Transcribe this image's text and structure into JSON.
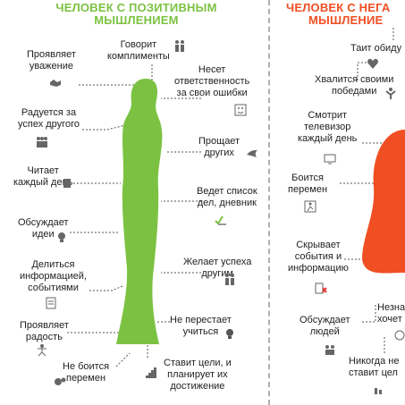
{
  "positive": {
    "title_line1": "ЧЕЛОВЕК С ПОЗИТИВНЫМ",
    "title_line2": "МЫШЛЕНИЕМ",
    "figure_color": "#7cc242",
    "items": [
      {
        "line1": "Проявляет",
        "line2": "уважение",
        "icon": "handshake-icon"
      },
      {
        "line1": "Говорит",
        "line2": "комплименты",
        "icon": "couple-icon"
      },
      {
        "line1": "Несет",
        "line2": "ответственность",
        "line3": "за свои ошибки",
        "icon": "smiley-icon"
      },
      {
        "line1": "Радуется за",
        "line2": "успех другого",
        "icon": "people-group-icon"
      },
      {
        "line1": "Прощает",
        "line2": "других",
        "icon": "dove-icon"
      },
      {
        "line1": "Читает",
        "line2": "каждый день",
        "icon": "book-icon"
      },
      {
        "line1": "Ведет список",
        "line2": "дел, дневник",
        "icon": "checklist-icon"
      },
      {
        "line1": "Обсуждает",
        "line2": "идеи",
        "icon": "lightbulb-icon"
      },
      {
        "line1": "Желает успеха",
        "line2": "другим",
        "icon": "two-people-icon"
      },
      {
        "line1": "Делиться",
        "line2": "информацией,",
        "line3": "событиями",
        "icon": "document-icon"
      },
      {
        "line1": "Не перестает",
        "line2": "учиться",
        "icon": "bulb-icon"
      },
      {
        "line1": "Проявляет",
        "line2": "радость",
        "icon": "dancer-icon"
      },
      {
        "line1": "Не боится",
        "line2": "перемен",
        "icon": "gears-icon"
      },
      {
        "line1": "Ставит цели, и",
        "line2": "планирует их",
        "line3": "достижение",
        "icon": "stairs-icon"
      }
    ]
  },
  "negative": {
    "title_line1": "ЧЕЛОВЕК С НЕГА",
    "title_line2": "МЫШЛЕНИЕ",
    "figure_color": "#ef4f23",
    "items": [
      {
        "line1": "Таит обиду",
        "icon": "broken-heart-icon"
      },
      {
        "line1": "Хвалится своими",
        "line2": "победами",
        "icon": "winner-icon"
      },
      {
        "line1": "Смотрит",
        "line2": "телевизор",
        "line3": "каждый день",
        "icon": "tv-icon"
      },
      {
        "line1": "Боится",
        "line2": "перемен",
        "icon": "running-icon"
      },
      {
        "line1": "Скрывает",
        "line2": "события и",
        "line3": "информацию",
        "icon": "hidden-doc-icon"
      },
      {
        "line1": "Обсуждает",
        "line2": "людей",
        "icon": "gossip-icon"
      },
      {
        "line1": "Незна",
        "line2": "хочет",
        "icon": "question-icon"
      },
      {
        "line1": "Никогда не",
        "line2": "ставит цел",
        "icon": "chart-down-icon"
      }
    ]
  }
}
